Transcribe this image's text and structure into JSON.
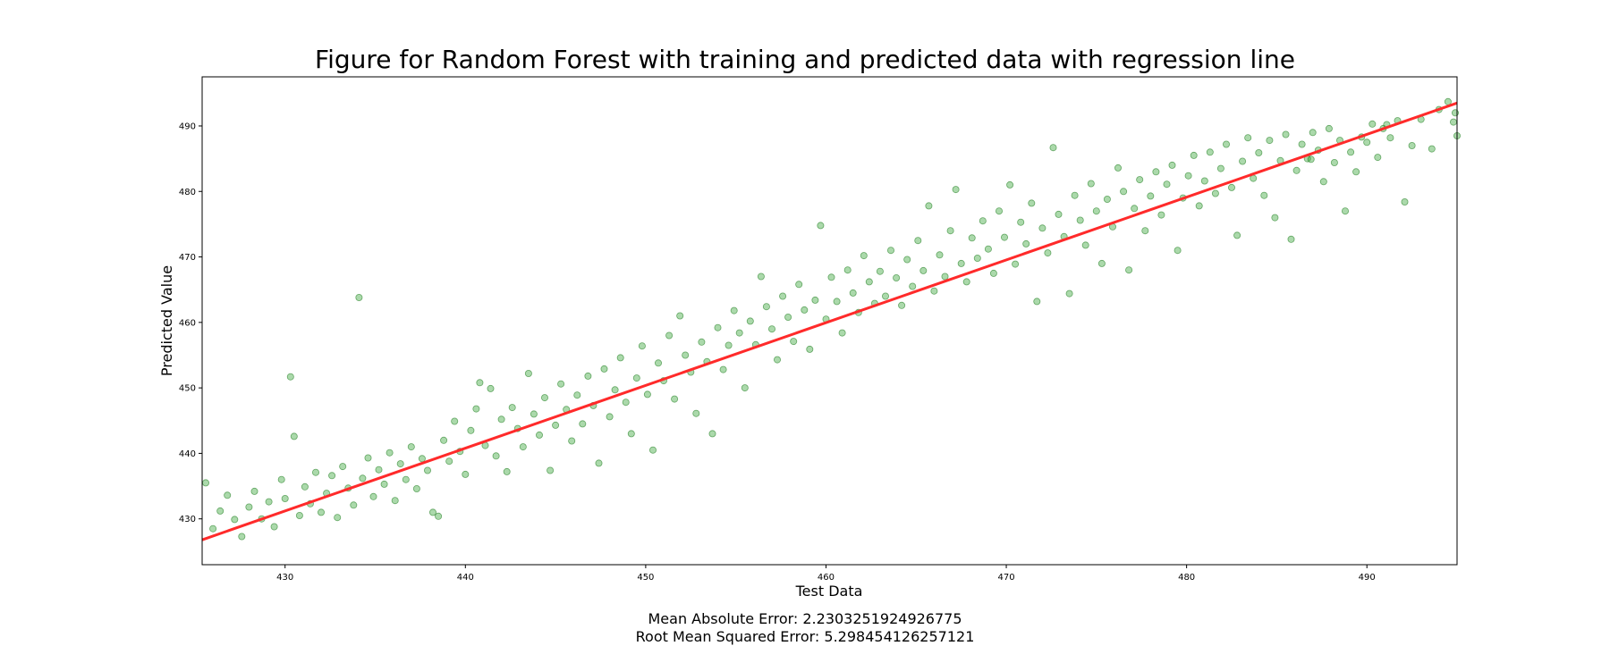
{
  "chart_data": {
    "type": "scatter",
    "title": "Figure for Random Forest with training and predicted data with regression line",
    "xlabel": "Test Data",
    "ylabel": "Predicted Value",
    "xlim": [
      425.4,
      495.0
    ],
    "ylim": [
      423.0,
      497.5
    ],
    "xticks": [
      430,
      440,
      450,
      460,
      470,
      480,
      490
    ],
    "yticks": [
      430,
      440,
      450,
      460,
      470,
      480,
      490
    ],
    "grid": false,
    "regression_line": {
      "color": "#ff2a2a",
      "x": [
        425.4,
        495.0
      ],
      "y": [
        426.8,
        493.5
      ]
    },
    "scatter_style": {
      "color": "#2ca02c",
      "edge": "#1a7a1a",
      "alpha": 0.4
    },
    "points": [
      [
        425.6,
        435.5
      ],
      [
        426.0,
        428.5
      ],
      [
        426.4,
        431.2
      ],
      [
        426.8,
        433.6
      ],
      [
        427.2,
        429.9
      ],
      [
        427.6,
        427.3
      ],
      [
        428.0,
        431.8
      ],
      [
        428.3,
        434.2
      ],
      [
        428.7,
        430.0
      ],
      [
        429.1,
        432.6
      ],
      [
        429.4,
        428.8
      ],
      [
        429.8,
        436.0
      ],
      [
        430.0,
        433.1
      ],
      [
        430.3,
        451.7
      ],
      [
        430.5,
        442.6
      ],
      [
        430.8,
        430.5
      ],
      [
        431.1,
        434.9
      ],
      [
        431.4,
        432.3
      ],
      [
        431.7,
        437.1
      ],
      [
        432.0,
        431.0
      ],
      [
        432.3,
        433.9
      ],
      [
        432.6,
        436.6
      ],
      [
        432.9,
        430.2
      ],
      [
        433.2,
        438.0
      ],
      [
        433.5,
        434.7
      ],
      [
        433.8,
        432.1
      ],
      [
        434.1,
        463.8
      ],
      [
        434.3,
        436.2
      ],
      [
        434.6,
        439.3
      ],
      [
        434.9,
        433.4
      ],
      [
        435.2,
        437.5
      ],
      [
        435.5,
        435.3
      ],
      [
        435.8,
        440.1
      ],
      [
        436.1,
        432.8
      ],
      [
        436.4,
        438.4
      ],
      [
        436.7,
        436.0
      ],
      [
        437.0,
        441.0
      ],
      [
        437.3,
        434.6
      ],
      [
        437.6,
        439.2
      ],
      [
        437.9,
        437.4
      ],
      [
        438.2,
        431.0
      ],
      [
        438.5,
        430.4
      ],
      [
        438.8,
        442.0
      ],
      [
        439.1,
        438.8
      ],
      [
        439.4,
        444.9
      ],
      [
        439.7,
        440.3
      ],
      [
        440.0,
        436.8
      ],
      [
        440.3,
        443.5
      ],
      [
        440.6,
        446.8
      ],
      [
        440.8,
        450.8
      ],
      [
        441.1,
        441.2
      ],
      [
        441.4,
        449.9
      ],
      [
        441.7,
        439.6
      ],
      [
        442.0,
        445.2
      ],
      [
        442.3,
        437.2
      ],
      [
        442.6,
        447.0
      ],
      [
        442.9,
        443.8
      ],
      [
        443.2,
        441.0
      ],
      [
        443.5,
        452.2
      ],
      [
        443.8,
        446.0
      ],
      [
        444.1,
        442.8
      ],
      [
        444.4,
        448.5
      ],
      [
        444.7,
        437.4
      ],
      [
        445.0,
        444.3
      ],
      [
        445.3,
        450.6
      ],
      [
        445.6,
        446.7
      ],
      [
        445.9,
        441.9
      ],
      [
        446.2,
        448.9
      ],
      [
        446.5,
        444.5
      ],
      [
        446.8,
        451.8
      ],
      [
        447.1,
        447.3
      ],
      [
        447.4,
        438.5
      ],
      [
        447.7,
        452.9
      ],
      [
        448.0,
        445.6
      ],
      [
        448.3,
        449.7
      ],
      [
        448.6,
        454.6
      ],
      [
        448.9,
        447.8
      ],
      [
        449.2,
        443.0
      ],
      [
        449.5,
        451.5
      ],
      [
        449.8,
        456.4
      ],
      [
        450.1,
        449.0
      ],
      [
        450.4,
        440.5
      ],
      [
        450.7,
        453.8
      ],
      [
        451.0,
        451.1
      ],
      [
        451.3,
        458.0
      ],
      [
        451.6,
        448.3
      ],
      [
        451.9,
        461.0
      ],
      [
        452.2,
        455.0
      ],
      [
        452.5,
        452.4
      ],
      [
        452.8,
        446.1
      ],
      [
        453.1,
        457.0
      ],
      [
        453.4,
        454.0
      ],
      [
        453.7,
        443.0
      ],
      [
        454.0,
        459.2
      ],
      [
        454.3,
        452.8
      ],
      [
        454.6,
        456.5
      ],
      [
        454.9,
        461.8
      ],
      [
        455.2,
        458.4
      ],
      [
        455.5,
        450.0
      ],
      [
        455.8,
        460.2
      ],
      [
        456.1,
        456.6
      ],
      [
        456.4,
        467.0
      ],
      [
        456.7,
        462.4
      ],
      [
        457.0,
        459.0
      ],
      [
        457.3,
        454.3
      ],
      [
        457.6,
        464.0
      ],
      [
        457.9,
        460.8
      ],
      [
        458.2,
        457.1
      ],
      [
        458.5,
        465.8
      ],
      [
        458.8,
        461.9
      ],
      [
        459.1,
        455.9
      ],
      [
        459.4,
        463.4
      ],
      [
        459.7,
        474.8
      ],
      [
        460.0,
        460.5
      ],
      [
        460.3,
        466.9
      ],
      [
        460.6,
        463.2
      ],
      [
        460.9,
        458.4
      ],
      [
        461.2,
        468.0
      ],
      [
        461.5,
        464.5
      ],
      [
        461.8,
        461.5
      ],
      [
        462.1,
        470.2
      ],
      [
        462.4,
        466.2
      ],
      [
        462.7,
        462.9
      ],
      [
        463.0,
        467.8
      ],
      [
        463.3,
        464.0
      ],
      [
        463.6,
        471.0
      ],
      [
        463.9,
        466.8
      ],
      [
        464.2,
        462.6
      ],
      [
        464.5,
        469.6
      ],
      [
        464.8,
        465.5
      ],
      [
        465.1,
        472.5
      ],
      [
        465.4,
        467.9
      ],
      [
        465.7,
        477.8
      ],
      [
        466.0,
        464.8
      ],
      [
        466.3,
        470.3
      ],
      [
        466.6,
        467.0
      ],
      [
        466.9,
        474.0
      ],
      [
        467.2,
        480.3
      ],
      [
        467.5,
        469.0
      ],
      [
        467.8,
        466.2
      ],
      [
        468.1,
        472.9
      ],
      [
        468.4,
        469.8
      ],
      [
        468.7,
        475.5
      ],
      [
        469.0,
        471.2
      ],
      [
        469.3,
        467.5
      ],
      [
        469.6,
        477.0
      ],
      [
        469.9,
        473.0
      ],
      [
        470.2,
        481.0
      ],
      [
        470.5,
        468.9
      ],
      [
        470.8,
        475.3
      ],
      [
        471.1,
        472.0
      ],
      [
        471.4,
        478.2
      ],
      [
        471.7,
        463.2
      ],
      [
        472.0,
        474.4
      ],
      [
        472.3,
        470.6
      ],
      [
        472.6,
        486.7
      ],
      [
        472.9,
        476.5
      ],
      [
        473.2,
        473.1
      ],
      [
        473.5,
        464.4
      ],
      [
        473.8,
        479.4
      ],
      [
        474.1,
        475.6
      ],
      [
        474.4,
        471.8
      ],
      [
        474.7,
        481.2
      ],
      [
        475.0,
        477.0
      ],
      [
        475.3,
        469.0
      ],
      [
        475.6,
        478.8
      ],
      [
        475.9,
        474.6
      ],
      [
        476.2,
        483.6
      ],
      [
        476.5,
        480.0
      ],
      [
        476.8,
        468.0
      ],
      [
        477.1,
        477.4
      ],
      [
        477.4,
        481.8
      ],
      [
        477.7,
        474.0
      ],
      [
        478.0,
        479.3
      ],
      [
        478.3,
        483.0
      ],
      [
        478.6,
        476.4
      ],
      [
        478.9,
        481.1
      ],
      [
        479.2,
        484.0
      ],
      [
        479.5,
        471.0
      ],
      [
        479.8,
        479.0
      ],
      [
        480.1,
        482.4
      ],
      [
        480.4,
        485.5
      ],
      [
        480.7,
        477.8
      ],
      [
        481.0,
        481.6
      ],
      [
        481.3,
        486.0
      ],
      [
        481.6,
        479.7
      ],
      [
        481.9,
        483.5
      ],
      [
        482.2,
        487.2
      ],
      [
        482.5,
        480.6
      ],
      [
        482.8,
        473.3
      ],
      [
        483.1,
        484.6
      ],
      [
        483.4,
        488.2
      ],
      [
        483.7,
        482.0
      ],
      [
        484.0,
        485.9
      ],
      [
        484.3,
        479.4
      ],
      [
        484.6,
        487.8
      ],
      [
        484.9,
        476.0
      ],
      [
        485.2,
        484.7
      ],
      [
        485.5,
        488.7
      ],
      [
        485.8,
        472.7
      ],
      [
        486.1,
        483.2
      ],
      [
        486.4,
        487.2
      ],
      [
        486.7,
        485.0
      ],
      [
        487.0,
        489.0
      ],
      [
        487.3,
        486.3
      ],
      [
        487.6,
        481.5
      ],
      [
        487.9,
        489.6
      ],
      [
        488.2,
        484.4
      ],
      [
        488.5,
        487.8
      ],
      [
        488.8,
        477.0
      ],
      [
        489.1,
        486.0
      ],
      [
        489.4,
        483.0
      ],
      [
        489.7,
        488.3
      ],
      [
        490.0,
        487.5
      ],
      [
        490.3,
        490.3
      ],
      [
        490.6,
        485.2
      ],
      [
        490.9,
        489.6
      ],
      [
        491.3,
        488.2
      ],
      [
        491.7,
        490.8
      ],
      [
        492.1,
        478.4
      ],
      [
        492.5,
        487.0
      ],
      [
        493.0,
        491.0
      ],
      [
        493.6,
        486.5
      ],
      [
        494.0,
        492.5
      ],
      [
        494.5,
        493.7
      ],
      [
        494.8,
        490.6
      ],
      [
        495.0,
        488.5
      ],
      [
        494.9,
        492.0
      ],
      [
        491.1,
        490.2
      ],
      [
        486.9,
        484.9
      ]
    ]
  },
  "metrics": {
    "mae": "Mean Absolute Error: 2.2303251924926775",
    "rmse": "Root Mean Squared Error: 5.298454126257121"
  }
}
